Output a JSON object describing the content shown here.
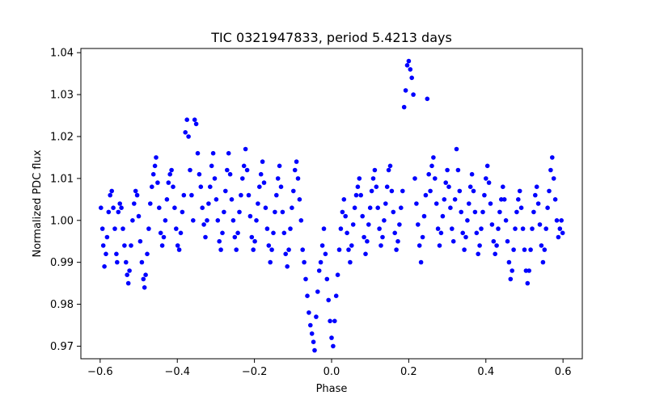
{
  "chart_data": {
    "type": "scatter",
    "title": "TIC 0321947833, period 5.4213 days",
    "xlabel": "Phase",
    "ylabel": "Normalized PDC flux",
    "xlim": [
      -0.65,
      0.65
    ],
    "ylim": [
      0.967,
      1.041
    ],
    "xticks": [
      -0.6,
      -0.4,
      -0.2,
      0.0,
      0.2,
      0.4,
      0.6
    ],
    "xtick_labels": [
      "−0.6",
      "−0.4",
      "−0.2",
      "0.0",
      "0.2",
      "0.4",
      "0.6"
    ],
    "yticks": [
      0.97,
      0.98,
      0.99,
      1.0,
      1.01,
      1.02,
      1.03,
      1.04
    ],
    "ytick_labels": [
      "0.97",
      "0.98",
      "0.99",
      "1.00",
      "1.01",
      "1.02",
      "1.03",
      "1.04"
    ],
    "grid": false,
    "marker_color": "#0000ff",
    "series": [
      {
        "points": [
          [
            -0.598,
            1.003
          ],
          [
            -0.594,
            0.998
          ],
          [
            -0.592,
            0.994
          ],
          [
            -0.589,
            0.989
          ],
          [
            -0.585,
            0.992
          ],
          [
            -0.582,
            0.996
          ],
          [
            -0.578,
            1.002
          ],
          [
            -0.574,
            1.006
          ],
          [
            -0.57,
            1.007
          ],
          [
            -0.566,
            1.003
          ],
          [
            -0.562,
            0.998
          ],
          [
            -0.558,
            0.992
          ],
          [
            -0.556,
            0.99
          ],
          [
            -0.553,
            1.002
          ],
          [
            -0.549,
            1.004
          ],
          [
            -0.545,
            1.003
          ],
          [
            -0.541,
            0.998
          ],
          [
            -0.537,
            0.994
          ],
          [
            -0.533,
            0.99
          ],
          [
            -0.53,
            0.987
          ],
          [
            -0.527,
            0.985
          ],
          [
            -0.524,
            0.988
          ],
          [
            -0.52,
            0.994
          ],
          [
            -0.516,
            1.0
          ],
          [
            -0.512,
            1.004
          ],
          [
            -0.508,
            1.007
          ],
          [
            -0.504,
            1.006
          ],
          [
            -0.5,
            1.001
          ],
          [
            -0.496,
            0.995
          ],
          [
            -0.492,
            0.99
          ],
          [
            -0.488,
            0.986
          ],
          [
            -0.485,
            0.984
          ],
          [
            -0.482,
            0.987
          ],
          [
            -0.478,
            0.992
          ],
          [
            -0.474,
            0.998
          ],
          [
            -0.47,
            1.004
          ],
          [
            -0.466,
            1.008
          ],
          [
            -0.462,
            1.011
          ],
          [
            -0.458,
            1.013
          ],
          [
            -0.455,
            1.015
          ],
          [
            -0.451,
            1.009
          ],
          [
            -0.447,
            1.003
          ],
          [
            -0.443,
            0.997
          ],
          [
            -0.439,
            0.994
          ],
          [
            -0.435,
            0.996
          ],
          [
            -0.431,
            1.0
          ],
          [
            -0.427,
            1.005
          ],
          [
            -0.423,
            1.009
          ],
          [
            -0.419,
            1.011
          ],
          [
            -0.415,
            1.012
          ],
          [
            -0.411,
            1.008
          ],
          [
            -0.407,
            1.003
          ],
          [
            -0.403,
            0.998
          ],
          [
            -0.399,
            0.994
          ],
          [
            -0.395,
            0.993
          ],
          [
            -0.391,
            0.997
          ],
          [
            -0.387,
            1.002
          ],
          [
            -0.383,
            1.006
          ],
          [
            -0.379,
            1.021
          ],
          [
            -0.375,
            1.024
          ],
          [
            -0.371,
            1.02
          ],
          [
            -0.367,
            1.012
          ],
          [
            -0.363,
            1.006
          ],
          [
            -0.359,
            1.0
          ],
          [
            -0.355,
            1.024
          ],
          [
            -0.351,
            1.023
          ],
          [
            -0.347,
            1.016
          ],
          [
            -0.343,
            1.011
          ],
          [
            -0.339,
            1.008
          ],
          [
            -0.335,
            1.003
          ],
          [
            -0.331,
            0.999
          ],
          [
            -0.327,
            0.996
          ],
          [
            -0.323,
            1.0
          ],
          [
            -0.319,
            1.004
          ],
          [
            -0.315,
            1.008
          ],
          [
            -0.311,
            1.013
          ],
          [
            -0.307,
            1.016
          ],
          [
            -0.303,
            1.01
          ],
          [
            -0.299,
            1.005
          ],
          [
            -0.295,
            1.0
          ],
          [
            -0.291,
            0.995
          ],
          [
            -0.287,
            0.993
          ],
          [
            -0.283,
            0.997
          ],
          [
            -0.279,
            1.002
          ],
          [
            -0.275,
            1.007
          ],
          [
            -0.271,
            1.012
          ],
          [
            -0.267,
            1.016
          ],
          [
            -0.263,
            1.011
          ],
          [
            -0.259,
            1.005
          ],
          [
            -0.255,
            1.0
          ],
          [
            -0.251,
            0.996
          ],
          [
            -0.247,
            0.993
          ],
          [
            -0.243,
            0.997
          ],
          [
            -0.239,
            1.002
          ],
          [
            -0.235,
            1.006
          ],
          [
            -0.231,
            1.01
          ],
          [
            -0.227,
            1.013
          ],
          [
            -0.223,
            1.017
          ],
          [
            -0.219,
            1.012
          ],
          [
            -0.215,
            1.006
          ],
          [
            -0.211,
            1.001
          ],
          [
            -0.207,
            0.996
          ],
          [
            -0.203,
            0.993
          ],
          [
            -0.199,
            0.995
          ],
          [
            -0.195,
            1.0
          ],
          [
            -0.191,
            1.004
          ],
          [
            -0.187,
            1.008
          ],
          [
            -0.183,
            1.011
          ],
          [
            -0.179,
            1.014
          ],
          [
            -0.175,
            1.009
          ],
          [
            -0.171,
            1.003
          ],
          [
            -0.167,
            0.998
          ],
          [
            -0.163,
            0.994
          ],
          [
            -0.159,
            0.99
          ],
          [
            -0.155,
            0.993
          ],
          [
            -0.151,
            0.997
          ],
          [
            -0.147,
            1.002
          ],
          [
            -0.143,
            1.006
          ],
          [
            -0.139,
            1.01
          ],
          [
            -0.135,
            1.013
          ],
          [
            -0.131,
            1.008
          ],
          [
            -0.127,
            1.002
          ],
          [
            -0.123,
            0.997
          ],
          [
            -0.119,
            0.992
          ],
          [
            -0.115,
            0.989
          ],
          [
            -0.111,
            0.993
          ],
          [
            -0.107,
            0.998
          ],
          [
            -0.103,
            1.003
          ],
          [
            -0.099,
            1.007
          ],
          [
            -0.095,
            1.012
          ],
          [
            -0.091,
            1.014
          ],
          [
            -0.087,
            1.01
          ],
          [
            -0.083,
            1.005
          ],
          [
            -0.079,
            1.0
          ],
          [
            -0.075,
            0.993
          ],
          [
            -0.071,
            0.99
          ],
          [
            -0.067,
            0.986
          ],
          [
            -0.063,
            0.982
          ],
          [
            -0.059,
            0.978
          ],
          [
            -0.055,
            0.975
          ],
          [
            -0.051,
            0.973
          ],
          [
            -0.047,
            0.971
          ],
          [
            -0.044,
            0.969
          ],
          [
            -0.04,
            0.977
          ],
          [
            -0.036,
            0.983
          ],
          [
            -0.032,
            0.988
          ],
          [
            -0.028,
            0.99
          ],
          [
            -0.024,
            0.994
          ],
          [
            -0.02,
            0.998
          ],
          [
            -0.016,
            0.992
          ],
          [
            -0.012,
            0.986
          ],
          [
            -0.008,
            0.981
          ],
          [
            -0.004,
            0.976
          ],
          [
            0.0,
            0.972
          ],
          [
            0.004,
            0.97
          ],
          [
            0.008,
            0.976
          ],
          [
            0.012,
            0.982
          ],
          [
            0.016,
            0.987
          ],
          [
            0.02,
            0.993
          ],
          [
            0.024,
            0.998
          ],
          [
            0.028,
            1.002
          ],
          [
            0.032,
            1.005
          ],
          [
            0.036,
            1.001
          ],
          [
            0.04,
            0.997
          ],
          [
            0.044,
            0.993
          ],
          [
            0.048,
            0.99
          ],
          [
            0.052,
            0.994
          ],
          [
            0.056,
            0.999
          ],
          [
            0.06,
            1.003
          ],
          [
            0.064,
            1.006
          ],
          [
            0.068,
            1.008
          ],
          [
            0.072,
            1.01
          ],
          [
            0.076,
            1.006
          ],
          [
            0.08,
            1.001
          ],
          [
            0.084,
            0.996
          ],
          [
            0.088,
            0.992
          ],
          [
            0.092,
            0.995
          ],
          [
            0.096,
            0.999
          ],
          [
            0.1,
            1.003
          ],
          [
            0.104,
            1.007
          ],
          [
            0.108,
            1.01
          ],
          [
            0.112,
            1.012
          ],
          [
            0.116,
            1.008
          ],
          [
            0.12,
            1.003
          ],
          [
            0.124,
            0.998
          ],
          [
            0.128,
            0.994
          ],
          [
            0.132,
            0.996
          ],
          [
            0.136,
            1.0
          ],
          [
            0.14,
            1.004
          ],
          [
            0.144,
            1.008
          ],
          [
            0.148,
            1.012
          ],
          [
            0.152,
            1.013
          ],
          [
            0.156,
            1.007
          ],
          [
            0.16,
            1.002
          ],
          [
            0.164,
            0.997
          ],
          [
            0.168,
            0.993
          ],
          [
            0.172,
            0.995
          ],
          [
            0.176,
            0.999
          ],
          [
            0.18,
            1.003
          ],
          [
            0.184,
            1.007
          ],
          [
            0.188,
            1.027
          ],
          [
            0.192,
            1.031
          ],
          [
            0.196,
            1.037
          ],
          [
            0.2,
            1.038
          ],
          [
            0.204,
            1.036
          ],
          [
            0.208,
            1.034
          ],
          [
            0.212,
            1.03
          ],
          [
            0.216,
            1.01
          ],
          [
            0.22,
            1.004
          ],
          [
            0.224,
            0.999
          ],
          [
            0.228,
            0.994
          ],
          [
            0.232,
            0.99
          ],
          [
            0.236,
            0.996
          ],
          [
            0.24,
            1.001
          ],
          [
            0.244,
            1.006
          ],
          [
            0.248,
            1.029
          ],
          [
            0.252,
            1.011
          ],
          [
            0.256,
            1.007
          ],
          [
            0.26,
            1.013
          ],
          [
            0.264,
            1.015
          ],
          [
            0.268,
            1.01
          ],
          [
            0.272,
            1.004
          ],
          [
            0.276,
            0.998
          ],
          [
            0.28,
            0.994
          ],
          [
            0.284,
            0.997
          ],
          [
            0.288,
            1.001
          ],
          [
            0.292,
            1.005
          ],
          [
            0.296,
            1.009
          ],
          [
            0.3,
            1.012
          ],
          [
            0.304,
            1.008
          ],
          [
            0.308,
            1.003
          ],
          [
            0.312,
            0.998
          ],
          [
            0.316,
            0.995
          ],
          [
            0.32,
            1.005
          ],
          [
            0.324,
            1.017
          ],
          [
            0.328,
            1.012
          ],
          [
            0.332,
            1.007
          ],
          [
            0.336,
            1.002
          ],
          [
            0.34,
            0.997
          ],
          [
            0.344,
            0.993
          ],
          [
            0.348,
            0.996
          ],
          [
            0.352,
            1.0
          ],
          [
            0.356,
            1.004
          ],
          [
            0.36,
            1.008
          ],
          [
            0.364,
            1.011
          ],
          [
            0.368,
            1.007
          ],
          [
            0.372,
            1.002
          ],
          [
            0.376,
            0.997
          ],
          [
            0.38,
            0.992
          ],
          [
            0.384,
            0.994
          ],
          [
            0.388,
            0.998
          ],
          [
            0.392,
            1.002
          ],
          [
            0.396,
            1.006
          ],
          [
            0.4,
            1.01
          ],
          [
            0.404,
            1.013
          ],
          [
            0.408,
            1.009
          ],
          [
            0.412,
            1.004
          ],
          [
            0.416,
            0.999
          ],
          [
            0.42,
            0.995
          ],
          [
            0.424,
            0.992
          ],
          [
            0.428,
            0.994
          ],
          [
            0.432,
            0.998
          ],
          [
            0.436,
            1.002
          ],
          [
            0.44,
            1.005
          ],
          [
            0.444,
            1.008
          ],
          [
            0.448,
            1.005
          ],
          [
            0.452,
            1.0
          ],
          [
            0.456,
            0.995
          ],
          [
            0.46,
            0.99
          ],
          [
            0.464,
            0.986
          ],
          [
            0.468,
            0.988
          ],
          [
            0.472,
            0.993
          ],
          [
            0.476,
            0.998
          ],
          [
            0.48,
            1.002
          ],
          [
            0.484,
            1.005
          ],
          [
            0.488,
            1.007
          ],
          [
            0.492,
            1.003
          ],
          [
            0.496,
            0.998
          ],
          [
            0.5,
            0.993
          ],
          [
            0.504,
            0.988
          ],
          [
            0.508,
            0.985
          ],
          [
            0.512,
            0.988
          ],
          [
            0.516,
            0.993
          ],
          [
            0.52,
            0.998
          ],
          [
            0.524,
            1.002
          ],
          [
            0.528,
            1.006
          ],
          [
            0.532,
            1.008
          ],
          [
            0.536,
            1.004
          ],
          [
            0.54,
            0.999
          ],
          [
            0.544,
            0.994
          ],
          [
            0.548,
            0.99
          ],
          [
            0.552,
            0.993
          ],
          [
            0.556,
            0.998
          ],
          [
            0.56,
            1.003
          ],
          [
            0.564,
            1.007
          ],
          [
            0.568,
            1.012
          ],
          [
            0.572,
            1.015
          ],
          [
            0.576,
            1.01
          ],
          [
            0.58,
            1.005
          ],
          [
            0.584,
            1.0
          ],
          [
            0.588,
            0.996
          ],
          [
            0.592,
            0.998
          ],
          [
            0.596,
            1.0
          ],
          [
            0.599,
            0.997
          ]
        ]
      }
    ]
  }
}
